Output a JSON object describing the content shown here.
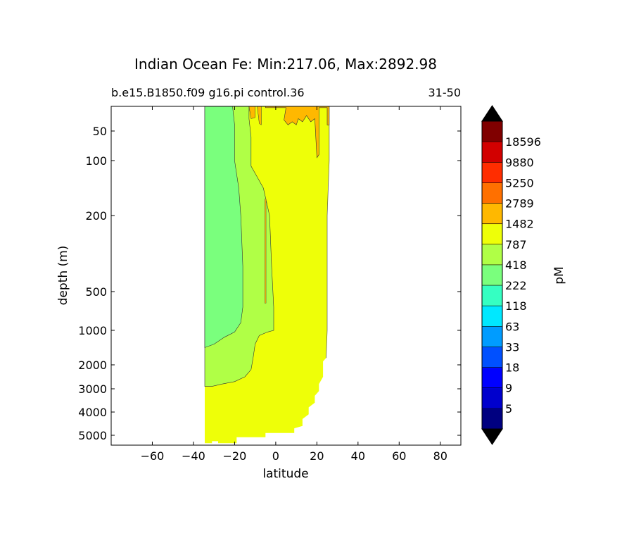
{
  "chart_data": {
    "type": "contour",
    "title": "Indian Ocean Fe: Min:217.06, Max:2892.98",
    "subtitle_left": "b.e15.B1850.f09 g16.pi control.36",
    "subtitle_right": "31-50",
    "xlabel": "latitude",
    "ylabel": "depth (m)",
    "xlim": [
      -80,
      90
    ],
    "ylim": [
      5500,
      10
    ],
    "y_scale": "nonlinear (stretched depth)",
    "x_ticks": [
      -60,
      -40,
      -20,
      0,
      20,
      40,
      60,
      80
    ],
    "x_tick_labels": [
      "−60",
      "−40",
      "−20",
      "0",
      "20",
      "40",
      "60",
      "80"
    ],
    "y_ticks": [
      50,
      100,
      200,
      500,
      1000,
      2000,
      3000,
      4000,
      5000
    ],
    "y_tick_labels": [
      "50",
      "100",
      "200",
      "500",
      "1000",
      "2000",
      "3000",
      "4000",
      "5000"
    ],
    "colorbar": {
      "label": "pM",
      "levels": [
        5,
        9,
        18,
        33,
        63,
        118,
        222,
        418,
        787,
        1482,
        2789,
        5250,
        9880,
        18596
      ],
      "level_labels": [
        "5",
        "9",
        "18",
        "33",
        "63",
        "118",
        "222",
        "418",
        "787",
        "1482",
        "2789",
        "5250",
        "9880",
        "18596"
      ],
      "colors": [
        "#000080",
        "#0000cd",
        "#0000ff",
        "#0050ff",
        "#009cff",
        "#00e8ff",
        "#35ffc2",
        "#7aff7d",
        "#b0ff46",
        "#eeff08",
        "#ffb800",
        "#ff7000",
        "#ff2d00",
        "#d20000",
        "#800000"
      ],
      "extend": "both",
      "extend_colors": [
        "#000000",
        "#000000"
      ]
    },
    "regions": [
      {
        "name": "418-787 band",
        "color": "#7aff7d",
        "lat_range": [
          -34,
          -14
        ],
        "depth_range": [
          10,
          1500
        ]
      },
      {
        "name": "787-1482 band",
        "color": "#b0ff46",
        "lat_range": [
          -34,
          -1
        ],
        "depth_range": [
          10,
          2900
        ]
      },
      {
        "name": "1482-2789 band",
        "color": "#eeff08",
        "lat_range": [
          -34,
          26
        ],
        "depth_range": [
          10,
          5400
        ]
      },
      {
        "name": "2789-5250 band",
        "color": "#ffb800",
        "lat_range": [
          -12,
          26
        ],
        "depth_range": [
          10,
          100
        ]
      }
    ],
    "grid": false
  }
}
